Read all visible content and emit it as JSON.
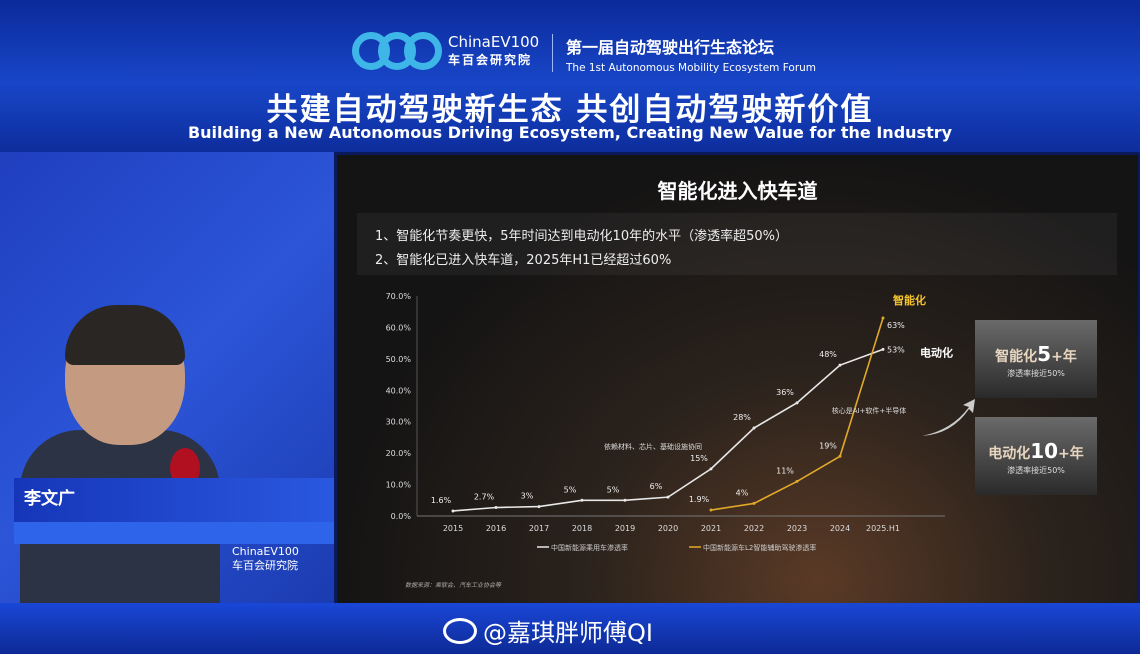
{
  "banner": {
    "logo_en": "ChinaEV100",
    "logo_cn": "车百会研究院",
    "forum_cn": "第一届自动驾驶出行生态论坛",
    "forum_en": "The 1st Autonomous Mobility Ecosystem Forum",
    "slogan_cn": "共建自动驾驶新生态 共创自动驾驶新价值",
    "slogan_en": "Building a New Autonomous Driving Ecosystem, Creating New Value for the Industry"
  },
  "speaker": {
    "name": "李文广",
    "logo_en": "ChinaEV100",
    "logo_cn": "车百会研究院"
  },
  "slide": {
    "title": "智能化进入快车道",
    "bullets": [
      "1、智能化节奏更快，5年时间达到电动化10年的水平（渗透率超50%）",
      "2、智能化已进入快车道，2025年H1已经超过60%"
    ],
    "cards": [
      {
        "prefix": "智能化",
        "num": "5",
        "suffix": "+年",
        "sub": "渗透率接近50%"
      },
      {
        "prefix": "电动化",
        "num": "10",
        "suffix": "+年",
        "sub": "渗透率接近50%"
      }
    ],
    "source": "数据来源：乘联会、汽车工业协会等"
  },
  "chart_data": {
    "type": "line",
    "categories": [
      "2015",
      "2016",
      "2017",
      "2018",
      "2019",
      "2020",
      "2021",
      "2022",
      "2023",
      "2024",
      "2025.H1"
    ],
    "ylim": [
      0,
      70
    ],
    "yticks": [
      "0.0%",
      "10.0%",
      "20.0%",
      "30.0%",
      "40.0%",
      "50.0%",
      "60.0%",
      "70.0%"
    ],
    "series": [
      {
        "name": "中国新能源乘用车渗透率",
        "color": "#e8e8e8",
        "values": [
          1.6,
          2.7,
          3,
          5,
          5,
          6,
          15,
          28,
          36,
          48,
          53
        ],
        "labels": [
          "1.6%",
          "2.7%",
          "3%",
          "5%",
          "5%",
          "6%",
          "15%",
          "28%",
          "36%",
          "48%",
          "53%"
        ],
        "end_label": "电动化"
      },
      {
        "name": "中国新能源车L2智能辅助驾驶渗透率",
        "color": "#e0a828",
        "values": [
          null,
          null,
          null,
          null,
          null,
          null,
          1.9,
          4,
          11,
          19,
          63
        ],
        "labels": [
          "",
          "",
          "",
          "",
          "",
          "",
          "1.9%",
          "4%",
          "11%",
          "19%",
          "63%"
        ],
        "end_label": "智能化"
      }
    ],
    "annotations": [
      "依赖材料、芯片、基础设施协同",
      "核心是AI+软件+半导体"
    ],
    "legend": "bottom",
    "grid": false
  },
  "watermark": "@嘉琪胖师傅QI",
  "icons": {
    "watermark": "weibo-icon"
  }
}
